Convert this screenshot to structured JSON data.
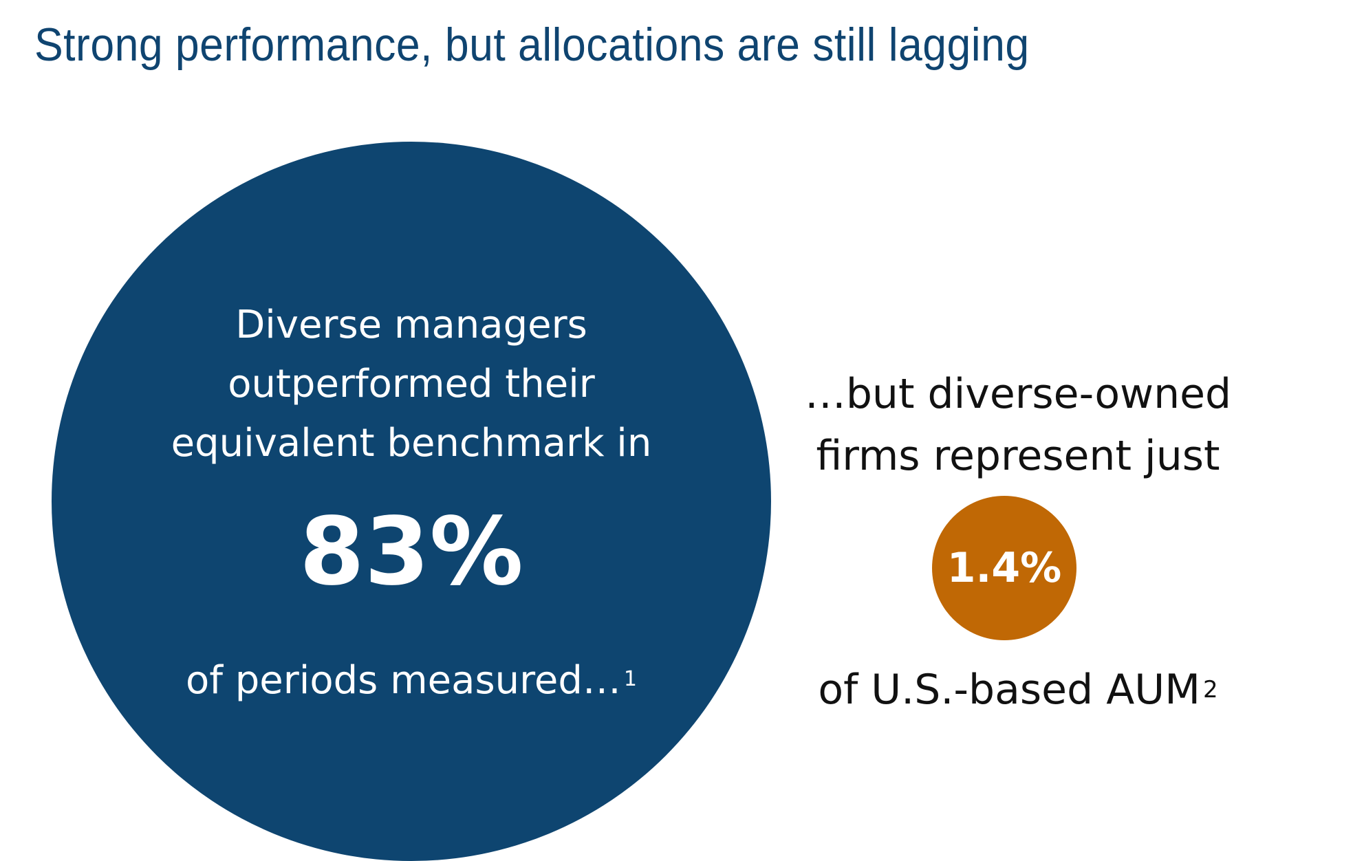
{
  "title": "Strong performance, but allocations are still lagging",
  "colors": {
    "title": "#0f4470",
    "primary_circle": "#0e4570",
    "accent_circle": "#c06805",
    "body_text": "#111111"
  },
  "primary_stat": {
    "lead_lines": [
      "Diverse managers",
      "outperformed their",
      "equivalent benchmark in"
    ],
    "value": "83%",
    "tail": "of periods measured…",
    "footnote": "1"
  },
  "secondary_stat": {
    "lead_lines": [
      "…but diverse-owned",
      "firms represent just"
    ],
    "value": "1.4%",
    "tail": "of U.S.-based AUM",
    "footnote": "2"
  }
}
